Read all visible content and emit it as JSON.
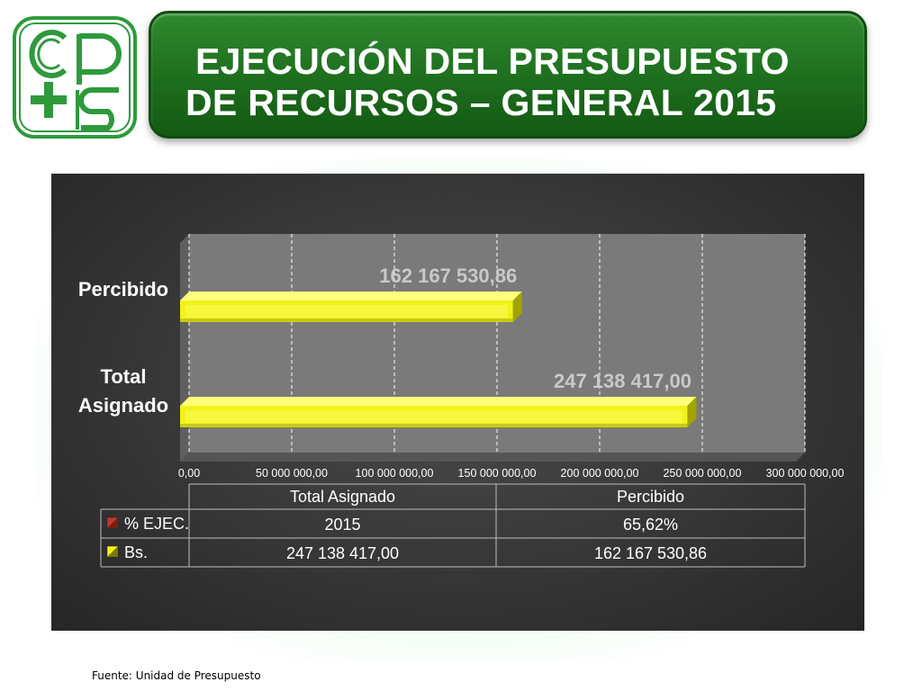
{
  "slide": {
    "title_line1": "EJECUCIÓN DEL PRESUPUESTO",
    "title_line2": "DE RECURSOS – GENERAL 2015",
    "source": "Fuente: Unidad de Presupuesto",
    "logo_text": "cps"
  },
  "colors": {
    "banner": "#1d6d1d",
    "logo_green": "#2e9a3c",
    "bar_yellow": "#f2f21a",
    "bar_dark": "#a3a300",
    "data_label": "#c9c9c9",
    "pct_legend": "#c0392b"
  },
  "chart_data": {
    "type": "bar",
    "orientation": "horizontal",
    "categories": [
      "Total Asignado",
      "Percibido"
    ],
    "series": [
      {
        "name": "Bs.",
        "values": [
          247138417.0,
          162167530.86
        ],
        "color": "#f2f21a"
      }
    ],
    "data_labels": [
      "247 138 417,00",
      "162 167 530,86"
    ],
    "xlim": [
      0,
      300000000
    ],
    "x_ticks": [
      0,
      50000000,
      100000000,
      150000000,
      200000000,
      250000000,
      300000000
    ],
    "x_tick_labels": [
      "0,00",
      "50 000 000,00",
      "100 000 000,00",
      "150 000 000,00",
      "200 000 000,00",
      "250 000 000,00",
      "300 000 000,00"
    ],
    "category_axis_labels": [
      {
        "category": "Total Asignado",
        "lines": [
          "Total",
          "Asignado"
        ]
      },
      {
        "category": "Percibido",
        "lines": [
          "Percibido"
        ]
      }
    ],
    "grid": true,
    "data_table": {
      "headers": [
        "Total Asignado",
        "Percibido"
      ],
      "rows": [
        {
          "key": "% EJEC.",
          "legend_color": "#c0392b",
          "values": [
            "2015",
            "65,62%"
          ]
        },
        {
          "key": "Bs.",
          "legend_color": "#f2f21a",
          "values": [
            "247 138 417,00",
            "162 167 530,86"
          ]
        }
      ]
    }
  }
}
